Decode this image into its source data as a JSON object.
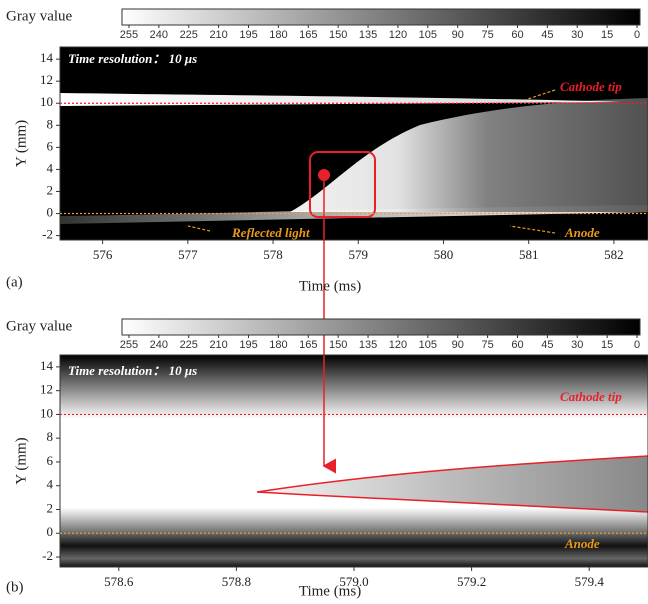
{
  "chart_data": [
    {
      "type": "streak",
      "panel_label": "(a)",
      "xlabel": "Time (ms)",
      "ylabel": "Y (mm)",
      "xlim": [
        575.5,
        582.4
      ],
      "xticks": [
        576,
        577,
        578,
        579,
        580,
        581,
        582
      ],
      "ylim": [
        -2.4,
        15.1
      ],
      "yticks": [
        -2,
        0,
        2,
        4,
        6,
        8,
        10,
        12,
        14
      ],
      "colorbar": {
        "label": "Gray value",
        "lim": [
          258.5,
          -1.5
        ],
        "ticks": [
          255,
          240,
          225,
          210,
          195,
          180,
          165,
          150,
          135,
          120,
          105,
          90,
          75,
          60,
          45,
          30,
          15,
          0
        ]
      },
      "reference_lines": [
        {
          "y": 10,
          "color": "#e8202a"
        },
        {
          "y": 0,
          "color": "#f0a030"
        }
      ],
      "annotations": [
        "Time resolution： 10 μs",
        "Cathode tip",
        "Reflected light",
        "Anode"
      ]
    },
    {
      "type": "streak",
      "panel_label": "(b)",
      "xlabel": "Time (ms)",
      "ylabel": "Y (mm)",
      "xlim": [
        578.5,
        579.5
      ],
      "xticks": [
        578.6,
        578.8,
        {
          "value": 579.0,
          "label": "579.0"
        },
        579.2,
        579.4
      ],
      "ylim": [
        -2.84,
        15.0
      ],
      "yticks": [
        -2,
        0,
        2,
        4,
        6,
        8,
        10,
        12,
        14
      ],
      "colorbar": {
        "label": "Gray value",
        "lim": [
          258.5,
          -1.5
        ],
        "ticks": [
          255,
          240,
          225,
          210,
          195,
          180,
          165,
          150,
          135,
          120,
          105,
          90,
          75,
          60,
          45,
          30,
          15,
          0
        ]
      },
      "reference_lines": [
        {
          "y": 10,
          "color": "#e8202a"
        },
        {
          "y": 0,
          "color": "#f0a030"
        }
      ],
      "annotations": [
        "Time resolution： 10 μs",
        "Cathode tip",
        "Anode"
      ]
    }
  ]
}
